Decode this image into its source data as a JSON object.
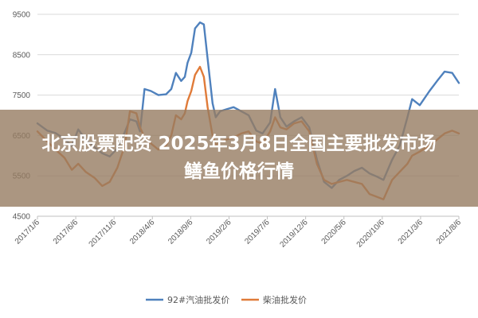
{
  "chart_data": {
    "type": "line",
    "ylim": [
      4500,
      9500
    ],
    "yticks": [
      4500,
      5500,
      6500,
      7500,
      8500,
      9500
    ],
    "ytick_labels": [
      "4500",
      "5500",
      "6500",
      "7500",
      "8500",
      "9500"
    ],
    "xtick_labels": [
      "2017/1/6",
      "2017/6/6",
      "2017/11/6",
      "2018/4/6",
      "2018/9/6",
      "2019/2/6",
      "2019/7/6",
      "2019/12/6",
      "2020/5/6",
      "2020/10/6",
      "2021/3/6",
      "2021/8/6"
    ],
    "x_range": [
      "2017-01-06",
      "2021-09-06"
    ],
    "grid": "horizontal",
    "legend": "bottom",
    "series": [
      {
        "name": "92#汽油批发价",
        "color": "#4f81bd",
        "points": [
          [
            "2017-01-06",
            6800
          ],
          [
            "2017-02-15",
            6620
          ],
          [
            "2017-03-20",
            6560
          ],
          [
            "2017-04-25",
            6420
          ],
          [
            "2017-05-25",
            6240
          ],
          [
            "2017-06-20",
            6650
          ],
          [
            "2017-07-20",
            6400
          ],
          [
            "2017-08-25",
            6210
          ],
          [
            "2017-09-25",
            6060
          ],
          [
            "2017-10-25",
            5980
          ],
          [
            "2017-11-25",
            6180
          ],
          [
            "2017-12-25",
            6580
          ],
          [
            "2018-01-15",
            6900
          ],
          [
            "2018-02-10",
            6850
          ],
          [
            "2018-02-25",
            6600
          ],
          [
            "2018-03-15",
            7650
          ],
          [
            "2018-04-10",
            7600
          ],
          [
            "2018-05-10",
            7500
          ],
          [
            "2018-06-10",
            7520
          ],
          [
            "2018-07-01",
            7650
          ],
          [
            "2018-07-20",
            8050
          ],
          [
            "2018-08-10",
            7850
          ],
          [
            "2018-08-25",
            7950
          ],
          [
            "2018-09-05",
            8300
          ],
          [
            "2018-09-20",
            8550
          ],
          [
            "2018-10-05",
            9150
          ],
          [
            "2018-10-25",
            9300
          ],
          [
            "2018-11-10",
            9250
          ],
          [
            "2018-11-25",
            8400
          ],
          [
            "2018-12-15",
            7300
          ],
          [
            "2018-12-28",
            6950
          ],
          [
            "2019-01-15",
            7100
          ],
          [
            "2019-02-10",
            7150
          ],
          [
            "2019-03-10",
            7200
          ],
          [
            "2019-04-10",
            7100
          ],
          [
            "2019-05-10",
            7000
          ],
          [
            "2019-06-10",
            6620
          ],
          [
            "2019-07-05",
            6550
          ],
          [
            "2019-08-05",
            6820
          ],
          [
            "2019-08-25",
            7650
          ],
          [
            "2019-09-15",
            6950
          ],
          [
            "2019-10-10",
            6720
          ],
          [
            "2019-11-10",
            6850
          ],
          [
            "2019-12-10",
            6950
          ],
          [
            "2020-01-10",
            6700
          ],
          [
            "2020-02-10",
            5900
          ],
          [
            "2020-03-10",
            5350
          ],
          [
            "2020-04-10",
            5200
          ],
          [
            "2020-05-10",
            5400
          ],
          [
            "2020-06-10",
            5500
          ],
          [
            "2020-07-10",
            5620
          ],
          [
            "2020-08-10",
            5700
          ],
          [
            "2020-09-10",
            5560
          ],
          [
            "2020-10-10",
            5480
          ],
          [
            "2020-11-05",
            5400
          ],
          [
            "2020-12-10",
            5900
          ],
          [
            "2021-01-10",
            6250
          ],
          [
            "2021-02-10",
            6950
          ],
          [
            "2021-03-01",
            7400
          ],
          [
            "2021-04-01",
            7250
          ],
          [
            "2021-05-10",
            7600
          ],
          [
            "2021-06-10",
            7850
          ],
          [
            "2021-07-10",
            8080
          ],
          [
            "2021-08-10",
            8050
          ],
          [
            "2021-09-06",
            7800
          ]
        ]
      },
      {
        "name": "柴油批发价",
        "color": "#e07b39",
        "points": [
          [
            "2017-01-06",
            6600
          ],
          [
            "2017-02-15",
            6350
          ],
          [
            "2017-03-20",
            6150
          ],
          [
            "2017-04-25",
            5950
          ],
          [
            "2017-05-25",
            5650
          ],
          [
            "2017-06-20",
            5800
          ],
          [
            "2017-07-20",
            5600
          ],
          [
            "2017-08-25",
            5450
          ],
          [
            "2017-09-25",
            5250
          ],
          [
            "2017-10-25",
            5350
          ],
          [
            "2017-11-25",
            5700
          ],
          [
            "2017-12-25",
            6250
          ],
          [
            "2018-01-15",
            7100
          ],
          [
            "2018-02-10",
            7050
          ],
          [
            "2018-02-25",
            6700
          ],
          [
            "2018-03-15",
            6450
          ],
          [
            "2018-04-10",
            6300
          ],
          [
            "2018-05-10",
            6150
          ],
          [
            "2018-06-10",
            6250
          ],
          [
            "2018-07-01",
            6500
          ],
          [
            "2018-07-20",
            7000
          ],
          [
            "2018-08-10",
            6900
          ],
          [
            "2018-08-25",
            7050
          ],
          [
            "2018-09-05",
            7350
          ],
          [
            "2018-09-20",
            7600
          ],
          [
            "2018-10-05",
            8000
          ],
          [
            "2018-10-25",
            8200
          ],
          [
            "2018-11-10",
            7950
          ],
          [
            "2018-11-25",
            7200
          ],
          [
            "2018-12-15",
            6500
          ],
          [
            "2018-12-28",
            6250
          ],
          [
            "2019-01-15",
            6350
          ],
          [
            "2019-02-10",
            6400
          ],
          [
            "2019-03-10",
            6450
          ],
          [
            "2019-04-10",
            6550
          ],
          [
            "2019-05-10",
            6600
          ],
          [
            "2019-06-10",
            6350
          ],
          [
            "2019-07-05",
            6300
          ],
          [
            "2019-08-05",
            6600
          ],
          [
            "2019-08-25",
            6950
          ],
          [
            "2019-09-15",
            6700
          ],
          [
            "2019-10-10",
            6650
          ],
          [
            "2019-11-10",
            6800
          ],
          [
            "2019-12-10",
            6850
          ],
          [
            "2020-01-10",
            6600
          ],
          [
            "2020-02-10",
            5800
          ],
          [
            "2020-03-10",
            5400
          ],
          [
            "2020-04-10",
            5300
          ],
          [
            "2020-05-10",
            5350
          ],
          [
            "2020-06-10",
            5400
          ],
          [
            "2020-07-10",
            5350
          ],
          [
            "2020-08-10",
            5300
          ],
          [
            "2020-09-10",
            5050
          ],
          [
            "2020-10-10",
            4980
          ],
          [
            "2020-11-05",
            4920
          ],
          [
            "2020-12-10",
            5400
          ],
          [
            "2021-01-10",
            5600
          ],
          [
            "2021-02-10",
            5800
          ],
          [
            "2021-03-01",
            6000
          ],
          [
            "2021-04-01",
            6100
          ],
          [
            "2021-05-10",
            6250
          ],
          [
            "2021-06-10",
            6400
          ],
          [
            "2021-07-10",
            6550
          ],
          [
            "2021-08-10",
            6620
          ],
          [
            "2021-09-06",
            6550
          ]
        ]
      }
    ]
  },
  "overlay": {
    "line1": "北京股票配资 2025年3月8日全国主要批发市场",
    "line2": "鳝鱼价格行情"
  }
}
